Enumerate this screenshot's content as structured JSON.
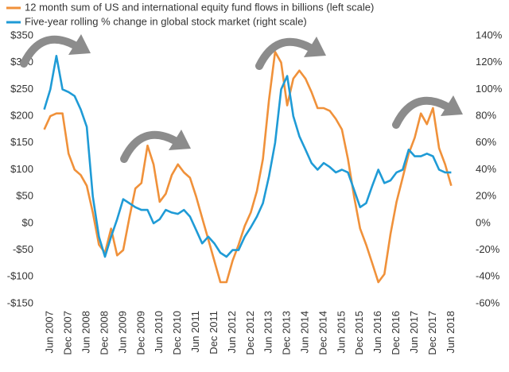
{
  "chart_data": {
    "type": "line",
    "x": [
      "2007-04",
      "2007-06",
      "2007-08",
      "2007-10",
      "2007-12",
      "2008-02",
      "2008-04",
      "2008-06",
      "2008-08",
      "2008-10",
      "2008-12",
      "2009-02",
      "2009-04",
      "2009-06",
      "2009-08",
      "2009-10",
      "2009-12",
      "2010-02",
      "2010-04",
      "2010-06",
      "2010-08",
      "2010-10",
      "2010-12",
      "2011-02",
      "2011-04",
      "2011-06",
      "2011-08",
      "2011-10",
      "2011-12",
      "2012-02",
      "2012-04",
      "2012-06",
      "2012-08",
      "2012-10",
      "2012-12",
      "2013-02",
      "2013-04",
      "2013-06",
      "2013-08",
      "2013-10",
      "2013-12",
      "2014-02",
      "2014-04",
      "2014-06",
      "2014-08",
      "2014-10",
      "2014-12",
      "2015-02",
      "2015-04",
      "2015-06",
      "2015-08",
      "2015-10",
      "2015-12",
      "2016-02",
      "2016-04",
      "2016-06",
      "2016-08",
      "2016-10",
      "2016-12",
      "2017-02",
      "2017-04",
      "2017-06",
      "2017-08",
      "2017-10",
      "2017-12",
      "2018-02",
      "2018-04",
      "2018-06"
    ],
    "series": [
      {
        "name": "12 month sum of US and international equity fund flows in billions (left scale)",
        "color": "#f0913a",
        "axis": "y",
        "values": [
          175,
          200,
          205,
          205,
          130,
          100,
          90,
          70,
          20,
          -40,
          -55,
          -10,
          -60,
          -50,
          10,
          65,
          75,
          145,
          110,
          40,
          55,
          90,
          110,
          95,
          85,
          50,
          10,
          -30,
          -70,
          -110,
          -110,
          -70,
          -40,
          -5,
          20,
          60,
          120,
          230,
          320,
          300,
          220,
          270,
          285,
          270,
          245,
          215,
          215,
          210,
          195,
          175,
          120,
          50,
          -10,
          -40,
          -75,
          -110,
          -95,
          -20,
          40,
          85,
          130,
          160,
          205,
          185,
          215,
          140,
          110,
          70
        ]
      },
      {
        "name": "Five-year rolling % change in global stock market (right scale)",
        "color": "#1f9bd6",
        "axis": "y2",
        "values": [
          85,
          100,
          125,
          100,
          98,
          95,
          85,
          72,
          20,
          -10,
          -25,
          -10,
          3,
          18,
          15,
          12,
          10,
          10,
          0,
          3,
          10,
          8,
          7,
          10,
          5,
          -5,
          -15,
          -10,
          -15,
          -22,
          -25,
          -20,
          -20,
          -10,
          -3,
          5,
          15,
          35,
          60,
          100,
          110,
          80,
          65,
          55,
          45,
          40,
          45,
          42,
          38,
          40,
          38,
          25,
          12,
          15,
          28,
          40,
          30,
          32,
          38,
          40,
          55,
          50,
          50,
          52,
          50,
          40,
          38,
          38
        ]
      }
    ],
    "xlim": [
      "2007-02",
      "2018-08"
    ],
    "xticks": [
      {
        "value": "2007-06",
        "label": "Jun 2007"
      },
      {
        "value": "2007-12",
        "label": "Dec 2007"
      },
      {
        "value": "2008-06",
        "label": "Jun 2008"
      },
      {
        "value": "2008-12",
        "label": "Dec 2008"
      },
      {
        "value": "2009-06",
        "label": "Jun 2009"
      },
      {
        "value": "2009-12",
        "label": "Dec 2009"
      },
      {
        "value": "2010-06",
        "label": "Jun 2010"
      },
      {
        "value": "2010-12",
        "label": "Dec 2010"
      },
      {
        "value": "2011-06",
        "label": "Jun 2011"
      },
      {
        "value": "2011-12",
        "label": "Dec 2011"
      },
      {
        "value": "2012-06",
        "label": "Jun 2012"
      },
      {
        "value": "2012-12",
        "label": "Dec 2012"
      },
      {
        "value": "2013-06",
        "label": "Jun 2013"
      },
      {
        "value": "2013-12",
        "label": "Dec 2013"
      },
      {
        "value": "2014-06",
        "label": "Jun 2014"
      },
      {
        "value": "2014-12",
        "label": "Dec 2014"
      },
      {
        "value": "2015-06",
        "label": "Jun 2015"
      },
      {
        "value": "2015-12",
        "label": "Dec 2015"
      },
      {
        "value": "2016-06",
        "label": "Jun 2016"
      },
      {
        "value": "2016-12",
        "label": "Dec 2016"
      },
      {
        "value": "2017-06",
        "label": "Jun 2017"
      },
      {
        "value": "2017-12",
        "label": "Dec 2017"
      },
      {
        "value": "2018-06",
        "label": "Jun 2018"
      }
    ],
    "ylim": [
      -150,
      350
    ],
    "yticks": [
      {
        "value": -150,
        "label": "-$150"
      },
      {
        "value": -100,
        "label": "-$100"
      },
      {
        "value": -50,
        "label": "-$50"
      },
      {
        "value": 0,
        "label": "$0"
      },
      {
        "value": 50,
        "label": "$50"
      },
      {
        "value": 100,
        "label": "$100"
      },
      {
        "value": 150,
        "label": "$150"
      },
      {
        "value": 200,
        "label": "$200"
      },
      {
        "value": 250,
        "label": "$250"
      },
      {
        "value": 300,
        "label": "$300"
      },
      {
        "value": 350,
        "label": "$350"
      }
    ],
    "y2lim": [
      -60,
      140
    ],
    "y2ticks": [
      {
        "value": -60,
        "label": "-60%"
      },
      {
        "value": -40,
        "label": "-40%"
      },
      {
        "value": -20,
        "label": "-20%"
      },
      {
        "value": 0,
        "label": "0%"
      },
      {
        "value": 20,
        "label": "20%"
      },
      {
        "value": 40,
        "label": "40%"
      },
      {
        "value": 60,
        "label": "60%"
      },
      {
        "value": 80,
        "label": "80%"
      },
      {
        "value": 100,
        "label": "100%"
      },
      {
        "value": 120,
        "label": "120%"
      },
      {
        "value": 140,
        "label": "140%"
      }
    ],
    "grid": false
  }
}
